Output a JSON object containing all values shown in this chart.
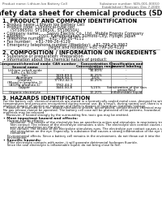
{
  "bg_color": "#ffffff",
  "header_left": "Product name: Lithium Ion Battery Cell",
  "header_right_line1": "Substance number: SDS-001-00010",
  "header_right_line2": "Established / Revision: Dec.7.2009",
  "title": "Safety data sheet for chemical products (SDS)",
  "section1_title": "1. PRODUCT AND COMPANY IDENTIFICATION",
  "section1_lines": [
    "• Product name: Lithium Ion Battery Cell",
    "• Product code: Cylindrical-type cell",
    "      (SY18650U, SY18650L, SY18650A)",
    "• Company name:      Sanyo Electric Co., Ltd., Mobile Energy Company",
    "• Address:            2001, Kamimunakan, Sumoto-City, Hyogo, Japan",
    "• Telephone number:   +81-799-26-4111",
    "• Fax number:   +81-799-26-4129",
    "• Emergency telephone number (Weekday): +81-799-26-3962",
    "                                     (Night and holiday): +81-799-26-4120"
  ],
  "section2_title": "2. COMPOSITION / INFORMATION ON INGREDIENTS",
  "section2_sub": "• Substance or preparation: Preparation",
  "section2_sub2": "• Information about the chemical nature of product:",
  "table_headers_row1": [
    "Component/chemical name",
    "CAS number",
    "Concentration /",
    "Classification and"
  ],
  "table_headers_row2": [
    "Several name",
    "",
    "Concentration range",
    "hazard labeling"
  ],
  "table_headers_row3": [
    "",
    "",
    "(30-60%)",
    ""
  ],
  "table_rows": [
    [
      "Lithium cobalt oxide",
      "-",
      "-",
      "-"
    ],
    [
      "(LiMn-Co-Ni-O4)",
      "",
      "",
      ""
    ],
    [
      "Iron",
      "7439-89-6",
      "15-25%",
      "-"
    ],
    [
      "Aluminum",
      "7429-90-5",
      "2-5%",
      "-"
    ],
    [
      "Graphite",
      "",
      "10-25%",
      "-"
    ],
    [
      "(Mixed in graphite-1)",
      "77782-42-5",
      "",
      ""
    ],
    [
      "(All-Mg graphite-1)",
      "7782-44-2",
      "",
      ""
    ],
    [
      "Copper",
      "7440-50-8",
      "5-15%",
      "Sensitization of the skin"
    ],
    [
      "",
      "",
      "",
      "group No.2"
    ],
    [
      "Organic electrolyte",
      "-",
      "10-20%",
      "Inflammable liquid"
    ]
  ],
  "section3_title": "3. HAZARDS IDENTIFICATION",
  "section3_lines": [
    "For the battery cell, chemical materials are stored in a hermetically-sealed metal case, designed to withstand",
    "temperatures and pressures encountered during normal use. As a result, during normal use, there is no",
    "physical danger of ignition or explosion and there is danger of hazardous materials leakage.",
    "   However, if exposed to a fire, added mechanical shocks, decomposed, vented electro-chemical may cause.",
    "No gas release cannot be operated. The battery cell case will be protected of fire-patterns, hazardous",
    "materials may be released.",
    "   Moreover, if heated strongly by the surrounding fire, toxic gas may be emitted."
  ],
  "section3_bullet1": "• Most important hazard and effects:",
  "section3_human": "   Human health effects:",
  "section3_human_lines": [
    "      Inhalation: The release of the electrolyte has an anesthesia action and stimulates in respiratory tract.",
    "      Skin contact: The release of the electrolyte stimulates a skin. The electrolyte skin contact causes a",
    "      sore and stimulation on the skin.",
    "      Eye contact: The release of the electrolyte stimulates eyes. The electrolyte eye contact causes a sore",
    "      and stimulation on the eye. Especially, a substance that causes a strong inflammation of the eye is",
    "      contained."
  ],
  "section3_env_lines": [
    "   Environmental effects: Since a battery cell remains in the environment, do not throw out it into the",
    "   environment."
  ],
  "section3_bullet2": "• Specific hazards:",
  "section3_specific_lines": [
    "   If the electrolyte contacts with water, it will generate detrimental hydrogen fluoride.",
    "   Since the seal electrolyte is inflammable liquid, do not bring close to fire."
  ]
}
